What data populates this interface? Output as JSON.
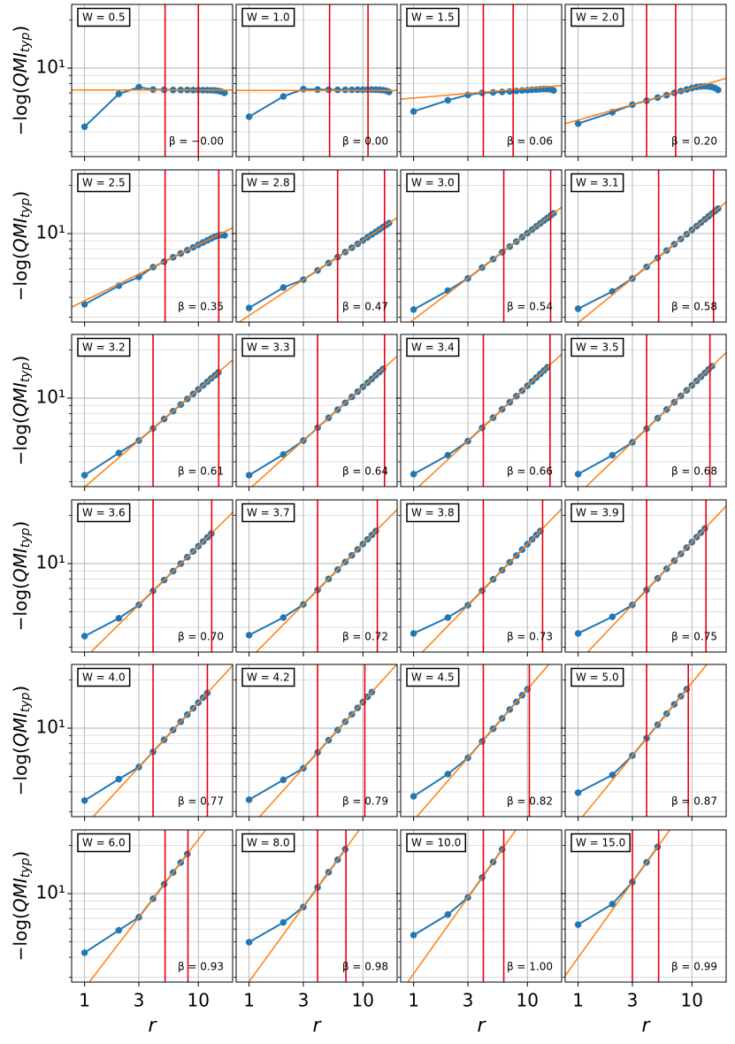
{
  "axes": {
    "xlim": [
      0.77,
      20
    ],
    "xticks": [
      1,
      3,
      10
    ],
    "ylim": [
      2.8,
      25
    ],
    "yticks": [
      {
        "value": 10,
        "label": "10¹"
      }
    ],
    "yminor": [
      3,
      4,
      5,
      6,
      7,
      8,
      9,
      20
    ],
    "log_x": true,
    "log_y": true,
    "grid": true,
    "colors": {
      "data": "#1f77b4",
      "fit": "#ff7f0e",
      "vline": "#e8000b"
    },
    "ylabel": {
      "text": "−log(",
      "italic": "QMI",
      "sub": "typ",
      "close": ")"
    },
    "xlabel": "r"
  },
  "chart_data": [
    {
      "type": "line",
      "label": "W = 0.5",
      "x": [
        1,
        2,
        3,
        4,
        5,
        6,
        7,
        8,
        9,
        10,
        11,
        12,
        13,
        14,
        15,
        16,
        17
      ],
      "values": [
        4.3,
        6.9,
        7.6,
        7.35,
        7.32,
        7.3,
        7.3,
        7.3,
        7.29,
        7.29,
        7.28,
        7.28,
        7.27,
        7.25,
        7.2,
        7.12,
        7.0
      ],
      "fit": {
        "x": [
          0.77,
          20
        ],
        "values": [
          7.3,
          7.3
        ]
      },
      "vlines": [
        5.1,
        10
      ],
      "beta_label": "β = −0.00"
    },
    {
      "type": "line",
      "label": "W = 1.0",
      "x": [
        1,
        2,
        3,
        4,
        5,
        6,
        7,
        8,
        9,
        10,
        11,
        12,
        13,
        14,
        15,
        16,
        17
      ],
      "values": [
        4.97,
        6.65,
        7.4,
        7.35,
        7.33,
        7.32,
        7.32,
        7.32,
        7.33,
        7.33,
        7.34,
        7.34,
        7.33,
        7.32,
        7.28,
        7.22,
        7.1
      ],
      "fit": {
        "x": [
          0.77,
          20
        ],
        "values": [
          7.25,
          7.25
        ]
      },
      "vlines": [
        5.1,
        11.1
      ],
      "beta_label": "β = 0.00"
    },
    {
      "type": "line",
      "label": "W = 1.5",
      "x": [
        1,
        2,
        3,
        4,
        5,
        6,
        7,
        8,
        9,
        10,
        11,
        12,
        13,
        14,
        15,
        16,
        17
      ],
      "values": [
        5.36,
        6.3,
        6.8,
        7.0,
        7.05,
        7.1,
        7.15,
        7.2,
        7.25,
        7.28,
        7.32,
        7.35,
        7.38,
        7.4,
        7.4,
        7.38,
        7.25
      ],
      "fit": {
        "x": [
          0.77,
          20
        ],
        "values": [
          6.4,
          7.78
        ]
      },
      "vlines": [
        4.1,
        7.5
      ],
      "beta_label": "β = 0.06"
    },
    {
      "type": "line",
      "label": "W = 2.0",
      "x": [
        1,
        2,
        3,
        4,
        5,
        6,
        7,
        8,
        9,
        10,
        11,
        12,
        13,
        14,
        15,
        16,
        17
      ],
      "values": [
        4.5,
        5.3,
        5.91,
        6.26,
        6.54,
        6.78,
        7.0,
        7.19,
        7.36,
        7.51,
        7.62,
        7.68,
        7.7,
        7.68,
        7.62,
        7.5,
        7.3
      ],
      "fit": {
        "x": [
          0.77,
          20
        ],
        "values": [
          4.5,
          8.63
        ]
      },
      "vlines": [
        4.0,
        7.2
      ],
      "beta_label": "β = 0.20"
    },
    {
      "type": "line",
      "label": "W = 2.5",
      "x": [
        1,
        2,
        3,
        4,
        5,
        6,
        7,
        8,
        9,
        10,
        11,
        12,
        13,
        14,
        15,
        16,
        17
      ],
      "values": [
        3.61,
        4.72,
        5.36,
        6.17,
        6.67,
        7.11,
        7.51,
        7.87,
        8.2,
        8.51,
        8.8,
        9.07,
        9.33,
        9.57,
        9.7,
        9.8,
        9.75
      ],
      "fit": {
        "x": [
          0.77,
          20
        ],
        "values": [
          3.47,
          10.85
        ]
      },
      "vlines": [
        5.1,
        15.1
      ],
      "beta_label": "β = 0.35"
    },
    {
      "type": "line",
      "label": "W = 2.8",
      "x": [
        1,
        2,
        3,
        4,
        5,
        6,
        7,
        8,
        9,
        10,
        11,
        12,
        13,
        14,
        15,
        16,
        17
      ],
      "values": [
        3.43,
        4.6,
        5.15,
        5.89,
        6.54,
        7.13,
        7.66,
        8.16,
        8.62,
        9.06,
        9.48,
        9.87,
        10.25,
        10.61,
        10.96,
        11.3,
        11.63
      ],
      "fit": {
        "x": [
          0.77,
          20
        ],
        "values": [
          2.72,
          12.55
        ]
      },
      "vlines": [
        6.0,
        15.5
      ],
      "beta_label": "β = 0.47"
    },
    {
      "type": "line",
      "label": "W = 3.0",
      "x": [
        1,
        2,
        3,
        4,
        5,
        6,
        7,
        8,
        9,
        10,
        11,
        12,
        13,
        14,
        15,
        16,
        17
      ],
      "values": [
        3.35,
        4.4,
        5.25,
        6.13,
        6.92,
        7.64,
        8.29,
        8.91,
        9.49,
        10.06,
        10.59,
        11.1,
        11.59,
        12.06,
        12.51,
        12.96,
        13.39
      ],
      "fit": {
        "x": [
          0.77,
          20
        ],
        "values": [
          2.52,
          14.62
        ]
      },
      "vlines": [
        6.2,
        16.0
      ],
      "beta_label": "β = 0.54"
    },
    {
      "type": "line",
      "label": "W = 3.1",
      "x": [
        1,
        2,
        3,
        4,
        5,
        6,
        7,
        8,
        9,
        10,
        11,
        12,
        13,
        14,
        15,
        16,
        17
      ],
      "values": [
        3.39,
        4.35,
        5.24,
        6.19,
        7.04,
        7.83,
        8.57,
        9.25,
        9.9,
        10.54,
        11.13,
        11.7,
        12.27,
        12.81,
        13.33,
        13.83,
        14.32
      ],
      "fit": {
        "x": [
          0.77,
          20
        ],
        "values": [
          2.38,
          15.75
        ]
      },
      "vlines": [
        5.1,
        15.5
      ],
      "beta_label": "β = 0.58"
    },
    {
      "type": "line",
      "label": "W = 3.2",
      "x": [
        1,
        2,
        3,
        4,
        5,
        6,
        7,
        8,
        9,
        10,
        11,
        12,
        13,
        14,
        15
      ],
      "values": [
        3.3,
        4.54,
        5.43,
        6.47,
        7.41,
        8.29,
        9.11,
        9.88,
        10.62,
        11.33,
        12.01,
        12.66,
        13.3,
        13.91,
        14.5
      ],
      "fit": {
        "x": [
          0.77,
          20
        ],
        "values": [
          2.37,
          17.29
        ]
      },
      "vlines": [
        4.0,
        15.1
      ],
      "beta_label": "β = 0.61"
    },
    {
      "type": "line",
      "label": "W = 3.3",
      "x": [
        1,
        2,
        3,
        4,
        5,
        6,
        7,
        8,
        9,
        10,
        11,
        12,
        13,
        14,
        15
      ],
      "values": [
        3.3,
        4.45,
        5.43,
        6.53,
        7.53,
        8.47,
        9.34,
        10.18,
        10.98,
        11.75,
        12.48,
        13.19,
        13.9,
        14.56,
        15.22
      ],
      "fit": {
        "x": [
          0.77,
          20
        ],
        "values": [
          2.28,
          18.29
        ]
      },
      "vlines": [
        4.0,
        15.5
      ],
      "beta_label": "β = 0.64"
    },
    {
      "type": "line",
      "label": "W = 3.4",
      "x": [
        1,
        2,
        3,
        4,
        5,
        6,
        7,
        8,
        9,
        10,
        11,
        12,
        13,
        14,
        15
      ],
      "values": [
        3.35,
        4.4,
        5.39,
        6.52,
        7.55,
        8.52,
        9.42,
        10.29,
        11.13,
        11.93,
        12.71,
        13.45,
        14.19,
        14.9,
        15.59
      ],
      "fit": {
        "x": [
          0.77,
          20
        ],
        "values": [
          2.2,
          18.85
        ]
      },
      "vlines": [
        4.1,
        15.8
      ],
      "beta_label": "β = 0.66"
    },
    {
      "type": "line",
      "label": "W = 3.5",
      "x": [
        1,
        2,
        3,
        4,
        5,
        6,
        7,
        8,
        9,
        10,
        11,
        12,
        13,
        14,
        15
      ],
      "values": [
        3.35,
        4.4,
        5.3,
        6.44,
        7.49,
        8.49,
        9.43,
        10.32,
        11.18,
        12.02,
        12.82,
        13.6,
        14.36,
        15.11,
        15.82
      ],
      "fit": {
        "x": [
          0.77,
          20
        ],
        "values": [
          2.1,
          19.25
        ]
      },
      "vlines": [
        4.0,
        14.4
      ],
      "beta_label": "β = 0.68"
    },
    {
      "type": "line",
      "label": "W = 3.6",
      "x": [
        1,
        2,
        3,
        4,
        5,
        6,
        7,
        8,
        9,
        10,
        11,
        12,
        13
      ],
      "values": [
        3.52,
        4.55,
        5.52,
        6.75,
        7.89,
        8.97,
        9.99,
        10.97,
        11.92,
        12.83,
        13.72,
        14.58,
        15.42
      ],
      "fit": {
        "x": [
          0.77,
          20
        ],
        "values": [
          2.13,
          20.84
        ]
      },
      "vlines": [
        4.0,
        13.1
      ],
      "beta_label": "β = 0.70"
    },
    {
      "type": "line",
      "label": "W = 3.7",
      "x": [
        1,
        2,
        3,
        4,
        5,
        6,
        7,
        8,
        9,
        10,
        11,
        12,
        13
      ],
      "values": [
        3.57,
        4.6,
        5.56,
        6.84,
        8.02,
        9.16,
        10.23,
        11.26,
        12.26,
        13.23,
        14.17,
        15.08,
        15.98
      ],
      "fit": {
        "x": [
          0.77,
          20
        ],
        "values": [
          2.09,
          21.78
        ]
      },
      "vlines": [
        4.0,
        13.4
      ],
      "beta_label": "β = 0.72"
    },
    {
      "type": "line",
      "label": "W = 3.8",
      "x": [
        1,
        2,
        3,
        4,
        5,
        6,
        7,
        8,
        9,
        10,
        11,
        12,
        13
      ],
      "values": [
        3.66,
        4.6,
        5.49,
        6.77,
        7.97,
        9.1,
        10.19,
        11.22,
        12.23,
        13.21,
        14.17,
        15.09,
        15.99
      ],
      "fit": {
        "x": [
          0.77,
          20
        ],
        "values": [
          2.03,
          21.92
        ]
      },
      "vlines": [
        4.1,
        13.6
      ],
      "beta_label": "β = 0.73"
    },
    {
      "type": "line",
      "label": "W = 3.9",
      "x": [
        1,
        2,
        3,
        4,
        5,
        6,
        7,
        8,
        9,
        10,
        11,
        12,
        13
      ],
      "values": [
        3.66,
        4.65,
        5.52,
        6.85,
        8.09,
        9.28,
        10.42,
        11.5,
        12.57,
        13.61,
        14.63,
        15.61,
        16.57
      ],
      "fit": {
        "x": [
          0.77,
          20
        ],
        "values": [
          1.99,
          22.89
        ]
      },
      "vlines": [
        4.0,
        13.3
      ],
      "beta_label": "β = 0.75"
    },
    {
      "type": "line",
      "label": "W = 4.0",
      "x": [
        1,
        2,
        3,
        4,
        5,
        6,
        7,
        8,
        9,
        10,
        11,
        12
      ],
      "values": [
        3.53,
        4.8,
        5.71,
        7.12,
        8.46,
        9.74,
        10.96,
        12.15,
        13.3,
        14.43,
        15.52,
        16.6
      ],
      "fit": {
        "x": [
          0.77,
          20
        ],
        "values": [
          2.0,
          24.6
        ]
      },
      "vlines": [
        4.0,
        12.0
      ],
      "beta_label": "β = 0.77"
    },
    {
      "type": "line",
      "label": "W = 4.2",
      "x": [
        1,
        2,
        3,
        4,
        5,
        6,
        7,
        8,
        9,
        10,
        11,
        12
      ],
      "values": [
        3.57,
        4.75,
        5.62,
        7.05,
        8.41,
        9.73,
        10.97,
        12.19,
        13.39,
        14.55,
        15.68,
        16.81
      ],
      "fit": {
        "x": [
          0.77,
          20
        ],
        "values": [
          1.92,
          25.17
        ]
      },
      "vlines": [
        4.0,
        10.4
      ],
      "beta_label": "β = 0.79"
    },
    {
      "type": "line",
      "label": "W = 4.5",
      "x": [
        1,
        2,
        3,
        4,
        5,
        6,
        7,
        8,
        9,
        10
      ],
      "values": [
        3.75,
        5.16,
        6.52,
        8.26,
        9.91,
        11.51,
        13.07,
        14.58,
        16.06,
        17.51
      ],
      "fit": {
        "x": [
          0.77,
          20
        ],
        "values": [
          2.14,
          30.9
        ]
      },
      "vlines": [
        4.1,
        10.4
      ],
      "beta_label": "β = 0.82"
    },
    {
      "type": "line",
      "label": "W = 5.0",
      "x": [
        1,
        2,
        3,
        4,
        5,
        6,
        7,
        8,
        9
      ],
      "values": [
        3.95,
        5.1,
        6.74,
        8.65,
        10.5,
        12.31,
        14.08,
        15.81,
        17.51
      ],
      "fit": {
        "x": [
          0.77,
          20
        ],
        "values": [
          2.06,
          35.1
        ]
      },
      "vlines": [
        4.0,
        9.3
      ],
      "beta_label": "β = 0.87"
    },
    {
      "type": "line",
      "label": "W = 6.0",
      "x": [
        1,
        2,
        3,
        4,
        5,
        6,
        7,
        8
      ],
      "values": [
        4.27,
        5.9,
        7.11,
        9.29,
        11.43,
        13.56,
        15.64,
        17.69
      ],
      "fit": {
        "x": [
          0.77,
          20
        ],
        "values": [
          2.01,
          41.5
        ]
      },
      "vlines": [
        5.1,
        8.1
      ],
      "beta_label": "β = 0.93"
    },
    {
      "type": "line",
      "label": "W = 8.0",
      "x": [
        1,
        2,
        3,
        4,
        5,
        6,
        7
      ],
      "values": [
        4.97,
        6.6,
        8.25,
        10.93,
        13.6,
        16.27,
        18.92
      ],
      "fit": {
        "x": [
          0.77,
          20
        ],
        "values": [
          2.18,
          52.9
        ]
      },
      "vlines": [
        4.0,
        7.1
      ],
      "beta_label": "β = 0.98"
    },
    {
      "type": "line",
      "label": "W = 10.0",
      "x": [
        1,
        2,
        3,
        4,
        5,
        6
      ],
      "values": [
        5.5,
        7.4,
        9.45,
        12.6,
        15.75,
        18.9
      ],
      "fit": {
        "x": [
          0.77,
          20
        ],
        "values": [
          2.43,
          63.0
        ]
      },
      "vlines": [
        4.1,
        6.2
      ],
      "beta_label": "β = 1.00"
    },
    {
      "type": "line",
      "label": "W = 15.0",
      "x": [
        1,
        2,
        3,
        4,
        5
      ],
      "values": [
        6.4,
        8.6,
        11.81,
        15.69,
        19.57
      ],
      "fit": {
        "x": [
          0.77,
          20
        ],
        "values": [
          3.07,
          77.3
        ]
      },
      "vlines": [
        3.0,
        5.1
      ],
      "beta_label": "β = 0.99"
    }
  ]
}
